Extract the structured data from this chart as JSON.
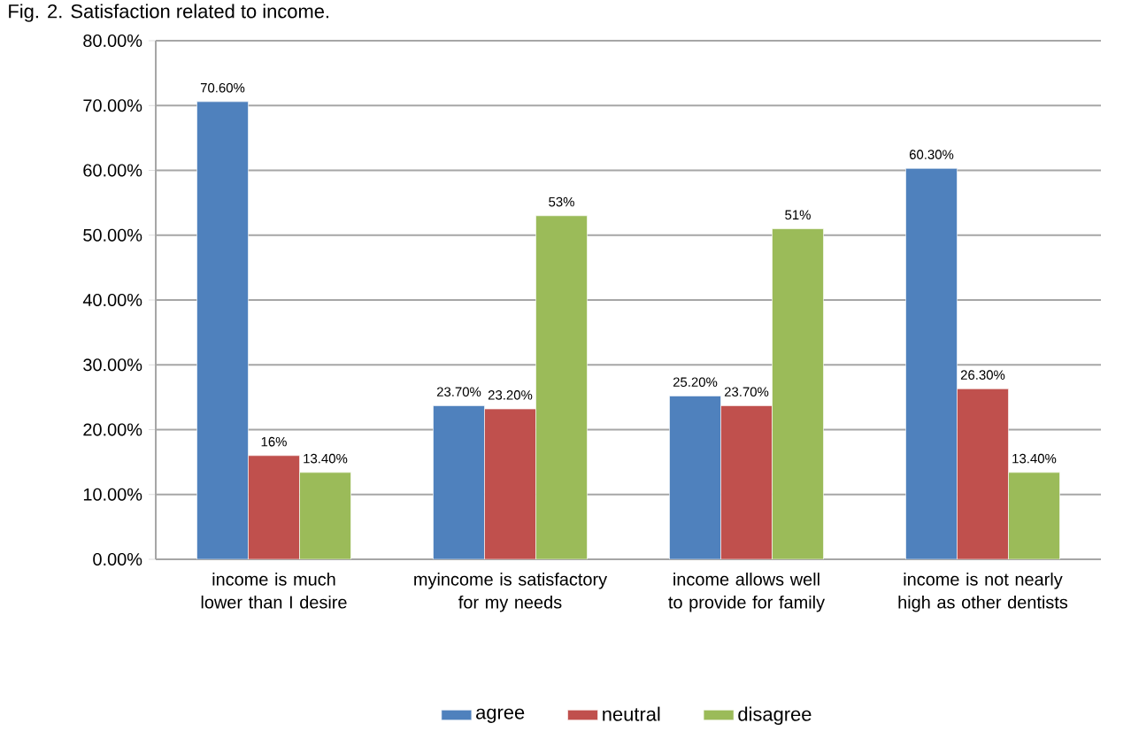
{
  "chart_data": {
    "type": "bar",
    "title": "Fig. 2. Satisfaction related to income.",
    "categories": [
      "income is much lower than I desire",
      "myincome is satisfactory for my needs",
      "income allows well to  provide for family",
      "income is not nearly high as other dentists"
    ],
    "series": [
      {
        "name": "agree",
        "color": "#4f81bd",
        "values": [
          70.6,
          23.7,
          25.2,
          60.3
        ],
        "value_labels": [
          "70.60%",
          "23.70%",
          "25.20%",
          "60.30%"
        ]
      },
      {
        "name": "neutral",
        "color": "#c0504d",
        "values": [
          16,
          23.2,
          23.7,
          26.3
        ],
        "value_labels": [
          "16%",
          "23.20%",
          "23.70%",
          "26.30%"
        ]
      },
      {
        "name": "disagree",
        "color": "#9bbb59",
        "values": [
          13.4,
          53,
          51,
          13.4
        ],
        "value_labels": [
          "13.40%",
          "53%",
          "51%",
          "13.40%"
        ]
      }
    ],
    "ylim": [
      0,
      80
    ],
    "yticks": [
      {
        "value": 0,
        "label": "0.00%"
      },
      {
        "value": 10,
        "label": "10.00%"
      },
      {
        "value": 20,
        "label": "20.00%"
      },
      {
        "value": 30,
        "label": "30.00%"
      },
      {
        "value": 40,
        "label": "40.00%"
      },
      {
        "value": 50,
        "label": "50.00%"
      },
      {
        "value": 60,
        "label": "60.00%"
      },
      {
        "value": 70,
        "label": "70.00%"
      },
      {
        "value": 80,
        "label": "80.00%"
      }
    ],
    "grid": "y",
    "legend": "bottom"
  }
}
